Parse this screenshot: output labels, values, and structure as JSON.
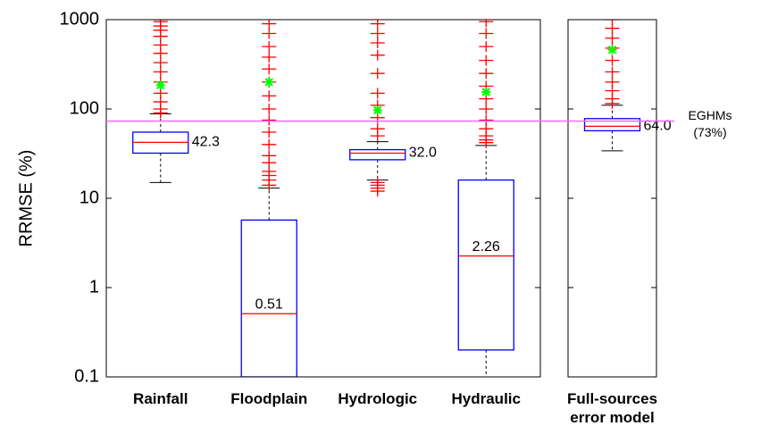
{
  "chart_data": {
    "type": "box",
    "ylabel": "RRMSE (%)",
    "log_y": true,
    "ylim": [
      0.1,
      1000
    ],
    "yticks": [
      0.1,
      1,
      10,
      100,
      1000
    ],
    "box_color": "#0000ff",
    "median_color": "#ff0000",
    "outlier_color": "#ff0000",
    "mean_color": "#00ff00",
    "whisker_color": "#000000",
    "reference_line": {
      "value": 73,
      "label": "EGHMs (73%)",
      "color": "#ff66ff"
    },
    "panels": [
      {
        "boxes": [
          {
            "category": "Rainfall",
            "whisker_low": 15,
            "q1": 32,
            "median": 42.3,
            "q3": 55,
            "whisker_high": 88,
            "mean": 185,
            "outliers": [
              90,
              100,
              120,
              150,
              200,
              260,
              330,
              420,
              520,
              650,
              760,
              850,
              950,
              1000
            ]
          },
          {
            "category": "Floodplain",
            "whisker_low": null,
            "q1": 0.1,
            "median": 0.51,
            "q3": 5.7,
            "whisker_high": 13,
            "mean": 200,
            "outliers": [
              14,
              16,
              18,
              20,
              25,
              30,
              40,
              55,
              75,
              100,
              140,
              200,
              280,
              380,
              500,
              700,
              900
            ]
          },
          {
            "category": "Hydrologic",
            "whisker_low": 16,
            "q1": 27,
            "median": 32,
            "median_label": "32.0",
            "q3": 35,
            "whisker_high": 43,
            "mean": 97,
            "outliers": [
              12,
              13,
              14,
              15,
              50,
              60,
              80,
              110,
              150,
              250,
              400,
              550,
              700,
              900
            ]
          },
          {
            "category": "Hydraulic",
            "whisker_low": 0.1,
            "q1": 0.2,
            "median": 2.26,
            "q3": 16,
            "whisker_high": 39,
            "mean": 155,
            "outliers": [
              42,
              45,
              50,
              60,
              75,
              100,
              130,
              180,
              250,
              350,
              500,
              700,
              950
            ]
          }
        ]
      },
      {
        "boxes": [
          {
            "category": "Full-sources error model",
            "whisker_low": 34,
            "q1": 57,
            "median": 64,
            "median_label": "64.0",
            "q3": 78,
            "whisker_high": 110,
            "mean": 460,
            "outliers": [
              115,
              130,
              160,
              200,
              260,
              350,
              480,
              620,
              800,
              1000
            ]
          }
        ]
      }
    ]
  }
}
